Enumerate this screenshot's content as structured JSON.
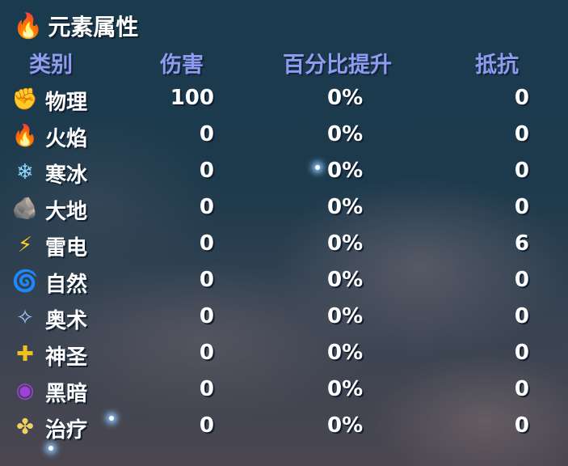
{
  "title": "元素属性",
  "title_icon": "flame-icon",
  "columns": [
    "类别",
    "伤害",
    "百分比提升",
    "抵抗"
  ],
  "header_color": "#8e9cf0",
  "rows": [
    {
      "icon": "fist-icon",
      "glyph": "✊",
      "name": "物理",
      "damage": "100",
      "percent": "0%",
      "resist": "0"
    },
    {
      "icon": "fire-icon",
      "glyph": "🔥",
      "name": "火焰",
      "damage": "0",
      "percent": "0%",
      "resist": "0"
    },
    {
      "icon": "snowflake-icon",
      "glyph": "❄",
      "name": "寒冰",
      "damage": "0",
      "percent": "0%",
      "resist": "0"
    },
    {
      "icon": "rock-icon",
      "glyph": "🪨",
      "name": "大地",
      "damage": "0",
      "percent": "0%",
      "resist": "0"
    },
    {
      "icon": "lightning-icon",
      "glyph": "⚡",
      "name": "雷电",
      "damage": "0",
      "percent": "0%",
      "resist": "6"
    },
    {
      "icon": "leaf-swirl-icon",
      "glyph": "🌀",
      "name": "自然",
      "damage": "0",
      "percent": "0%",
      "resist": "0"
    },
    {
      "icon": "arcane-icon",
      "glyph": "✧",
      "name": "奥术",
      "damage": "0",
      "percent": "0%",
      "resist": "0"
    },
    {
      "icon": "holy-cross-icon",
      "glyph": "✚",
      "name": "神圣",
      "damage": "0",
      "percent": "0%",
      "resist": "0"
    },
    {
      "icon": "dark-vortex-icon",
      "glyph": "◉",
      "name": "黑暗",
      "damage": "0",
      "percent": "0%",
      "resist": "0"
    },
    {
      "icon": "heal-cross-icon",
      "glyph": "✤",
      "name": "治疗",
      "damage": "0",
      "percent": "0%",
      "resist": "0"
    }
  ]
}
